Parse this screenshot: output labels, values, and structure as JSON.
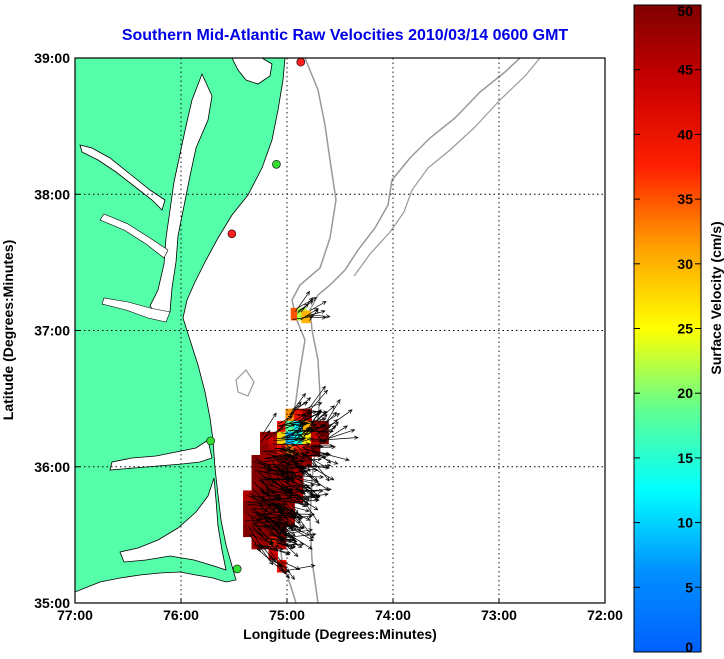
{
  "chart_data": {
    "type": "heatmap",
    "title": "Southern Mid-Atlantic Raw Velocities 2010/03/14 0600 GMT",
    "xlabel": "Longitude (Degrees:Minutes)",
    "ylabel": "Latitude (Degrees:Minutes)",
    "xlim": [
      -77,
      -72
    ],
    "ylim": [
      35,
      39
    ],
    "x_ticks": [
      {
        "value": -77,
        "label": "77:00"
      },
      {
        "value": -76,
        "label": "76:00"
      },
      {
        "value": -75,
        "label": "75:00"
      },
      {
        "value": -74,
        "label": "74:00"
      },
      {
        "value": -73,
        "label": "73:00"
      },
      {
        "value": -72,
        "label": "72:00"
      }
    ],
    "y_ticks": [
      {
        "value": 35,
        "label": "35:00"
      },
      {
        "value": 36,
        "label": "36:00"
      },
      {
        "value": 37,
        "label": "37:00"
      },
      {
        "value": 38,
        "label": "38:00"
      },
      {
        "value": 39,
        "label": "39:00"
      }
    ],
    "grid": true,
    "colorbar": {
      "label": "Surface Velocity (cm/s)",
      "range": [
        0,
        50
      ],
      "ticks": [
        {
          "value": 0,
          "label": "0"
        },
        {
          "value": 5,
          "label": "5"
        },
        {
          "value": 10,
          "label": "10"
        },
        {
          "value": 15,
          "label": "15"
        },
        {
          "value": 20,
          "label": "20"
        },
        {
          "value": 25,
          "label": "25"
        },
        {
          "value": 30,
          "label": "30"
        },
        {
          "value": 35,
          "label": "35"
        },
        {
          "value": 40,
          "label": "40"
        },
        {
          "value": 45,
          "label": "45"
        },
        {
          "value": 50,
          "label": "50"
        }
      ]
    },
    "stations": [
      {
        "lon": -74.87,
        "lat": 38.97,
        "color": "#ff2020"
      },
      {
        "lon": -75.1,
        "lat": 38.22,
        "color": "#33dd33"
      },
      {
        "lon": -75.52,
        "lat": 37.71,
        "color": "#ff2020"
      },
      {
        "lon": -75.72,
        "lat": 36.19,
        "color": "#33dd33"
      },
      {
        "lon": -75.47,
        "lat": 35.25,
        "color": "#33dd33"
      }
    ],
    "velocity_cells": [
      {
        "lon": -74.97,
        "lat": 36.38,
        "speed": 32
      },
      {
        "lon": -74.89,
        "lat": 36.38,
        "speed": 40
      },
      {
        "lon": -74.81,
        "lat": 36.38,
        "speed": 46
      },
      {
        "lon": -75.05,
        "lat": 36.29,
        "speed": 38
      },
      {
        "lon": -74.97,
        "lat": 36.29,
        "speed": 18
      },
      {
        "lon": -74.89,
        "lat": 36.29,
        "speed": 12
      },
      {
        "lon": -74.81,
        "lat": 36.29,
        "speed": 30
      },
      {
        "lon": -74.73,
        "lat": 36.29,
        "speed": 48
      },
      {
        "lon": -74.65,
        "lat": 36.29,
        "speed": 50
      },
      {
        "lon": -75.21,
        "lat": 36.21,
        "speed": 47
      },
      {
        "lon": -75.13,
        "lat": 36.21,
        "speed": 44
      },
      {
        "lon": -75.05,
        "lat": 36.21,
        "speed": 28
      },
      {
        "lon": -74.97,
        "lat": 36.21,
        "speed": 9
      },
      {
        "lon": -74.89,
        "lat": 36.21,
        "speed": 14
      },
      {
        "lon": -74.81,
        "lat": 36.21,
        "speed": 26
      },
      {
        "lon": -74.73,
        "lat": 36.21,
        "speed": 45
      },
      {
        "lon": -74.65,
        "lat": 36.21,
        "speed": 50
      },
      {
        "lon": -75.21,
        "lat": 36.12,
        "speed": 49
      },
      {
        "lon": -75.13,
        "lat": 36.12,
        "speed": 46
      },
      {
        "lon": -75.05,
        "lat": 36.12,
        "speed": 40
      },
      {
        "lon": -74.97,
        "lat": 36.12,
        "speed": 33
      },
      {
        "lon": -74.89,
        "lat": 36.12,
        "speed": 38
      },
      {
        "lon": -74.81,
        "lat": 36.12,
        "speed": 45
      },
      {
        "lon": -74.73,
        "lat": 36.12,
        "speed": 50
      },
      {
        "lon": -75.29,
        "lat": 36.04,
        "speed": 50
      },
      {
        "lon": -75.21,
        "lat": 36.04,
        "speed": 48
      },
      {
        "lon": -75.13,
        "lat": 36.04,
        "speed": 47
      },
      {
        "lon": -75.05,
        "lat": 36.04,
        "speed": 49
      },
      {
        "lon": -74.97,
        "lat": 36.04,
        "speed": 50
      },
      {
        "lon": -74.89,
        "lat": 36.04,
        "speed": 50
      },
      {
        "lon": -74.81,
        "lat": 36.04,
        "speed": 48
      },
      {
        "lon": -75.29,
        "lat": 35.95,
        "speed": 50
      },
      {
        "lon": -75.21,
        "lat": 35.95,
        "speed": 50
      },
      {
        "lon": -75.13,
        "lat": 35.95,
        "speed": 49
      },
      {
        "lon": -75.05,
        "lat": 35.95,
        "speed": 50
      },
      {
        "lon": -74.97,
        "lat": 35.95,
        "speed": 50
      },
      {
        "lon": -74.89,
        "lat": 35.95,
        "speed": 47
      },
      {
        "lon": -75.29,
        "lat": 35.87,
        "speed": 49
      },
      {
        "lon": -75.21,
        "lat": 35.87,
        "speed": 50
      },
      {
        "lon": -75.13,
        "lat": 35.87,
        "speed": 50
      },
      {
        "lon": -75.05,
        "lat": 35.87,
        "speed": 48
      },
      {
        "lon": -74.97,
        "lat": 35.87,
        "speed": 50
      },
      {
        "lon": -74.89,
        "lat": 35.87,
        "speed": 45
      },
      {
        "lon": -75.37,
        "lat": 35.78,
        "speed": 46
      },
      {
        "lon": -75.29,
        "lat": 35.78,
        "speed": 50
      },
      {
        "lon": -75.21,
        "lat": 35.78,
        "speed": 50
      },
      {
        "lon": -75.13,
        "lat": 35.78,
        "speed": 50
      },
      {
        "lon": -75.05,
        "lat": 35.78,
        "speed": 49
      },
      {
        "lon": -74.97,
        "lat": 35.78,
        "speed": 48
      },
      {
        "lon": -74.89,
        "lat": 35.78,
        "speed": 46
      },
      {
        "lon": -75.37,
        "lat": 35.7,
        "speed": 50
      },
      {
        "lon": -75.29,
        "lat": 35.7,
        "speed": 50
      },
      {
        "lon": -75.21,
        "lat": 35.7,
        "speed": 49
      },
      {
        "lon": -75.13,
        "lat": 35.7,
        "speed": 50
      },
      {
        "lon": -75.05,
        "lat": 35.7,
        "speed": 50
      },
      {
        "lon": -74.97,
        "lat": 35.7,
        "speed": 47
      },
      {
        "lon": -75.37,
        "lat": 35.61,
        "speed": 48
      },
      {
        "lon": -75.29,
        "lat": 35.61,
        "speed": 50
      },
      {
        "lon": -75.21,
        "lat": 35.61,
        "speed": 50
      },
      {
        "lon": -75.13,
        "lat": 35.61,
        "speed": 48
      },
      {
        "lon": -75.05,
        "lat": 35.61,
        "speed": 50
      },
      {
        "lon": -74.97,
        "lat": 35.61,
        "speed": 46
      },
      {
        "lon": -75.37,
        "lat": 35.53,
        "speed": 50
      },
      {
        "lon": -75.29,
        "lat": 35.53,
        "speed": 49
      },
      {
        "lon": -75.21,
        "lat": 35.53,
        "speed": 50
      },
      {
        "lon": -75.13,
        "lat": 35.53,
        "speed": 50
      },
      {
        "lon": -75.05,
        "lat": 35.53,
        "speed": 49
      },
      {
        "lon": -75.29,
        "lat": 35.44,
        "speed": 47
      },
      {
        "lon": -75.21,
        "lat": 35.44,
        "speed": 48
      },
      {
        "lon": -75.13,
        "lat": 35.44,
        "speed": 38
      },
      {
        "lon": -75.05,
        "lat": 35.44,
        "speed": 46
      },
      {
        "lon": -75.13,
        "lat": 35.36,
        "speed": 44
      },
      {
        "lon": -75.05,
        "lat": 35.27,
        "speed": 40
      },
      {
        "lon": -74.92,
        "lat": 37.12,
        "speed": 35
      },
      {
        "lon": -74.86,
        "lat": 37.12,
        "speed": 22
      },
      {
        "lon": -74.82,
        "lat": 37.1,
        "speed": 30
      }
    ]
  }
}
